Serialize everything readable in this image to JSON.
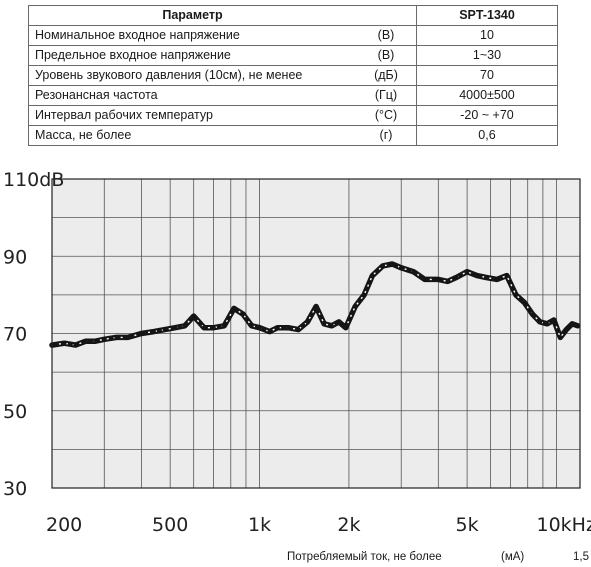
{
  "spec_table": {
    "header": {
      "param": "Параметр",
      "unit": "",
      "value": "SPT-1340"
    },
    "rows": [
      {
        "param": "Номинальное входное напряжение",
        "unit": "(В)",
        "value": "10"
      },
      {
        "param": "Предельное входное напряжение",
        "unit": "(В)",
        "value": "1~30"
      },
      {
        "param": "Уровень звукового давления (10см), не менее",
        "unit": "(дБ)",
        "value": "70"
      },
      {
        "param": "Резонансная частота",
        "unit": "(Гц)",
        "value": "4000±500"
      },
      {
        "param": "Интервал рабочих температур",
        "unit": "(°С)",
        "value": "-20 ~ +70"
      },
      {
        "param": "Масса, не более",
        "unit": "(г)",
        "value": "0,6"
      }
    ]
  },
  "footer": {
    "label": "Потребляемый ток, не более",
    "unit": "(мА)",
    "value": "1,5"
  },
  "chart_data": {
    "type": "line",
    "title": "",
    "xlabel": "",
    "ylabel": "",
    "x_scale": "log",
    "xlim": [
      200,
      12000
    ],
    "ylim": [
      30,
      110
    ],
    "grid": true,
    "y_ticks": [
      {
        "value": 110,
        "label": "110dB"
      },
      {
        "value": 90,
        "label": "90"
      },
      {
        "value": 70,
        "label": "70"
      },
      {
        "value": 50,
        "label": "50"
      },
      {
        "value": 30,
        "label": "30"
      }
    ],
    "x_ticks": [
      {
        "value": 200,
        "label": "200"
      },
      {
        "value": 500,
        "label": "500"
      },
      {
        "value": 1000,
        "label": "1k"
      },
      {
        "value": 2000,
        "label": "2k"
      },
      {
        "value": 5000,
        "label": "5k"
      },
      {
        "value": 10000,
        "label": "10kHz"
      }
    ],
    "colors": {
      "background": "#ececec",
      "grid": "#555555",
      "line": "#151515"
    },
    "series": [
      {
        "name": "",
        "x": [
          200,
          220,
          240,
          260,
          280,
          300,
          330,
          360,
          400,
          440,
          480,
          520,
          560,
          600,
          650,
          700,
          760,
          820,
          880,
          940,
          1000,
          1080,
          1150,
          1250,
          1350,
          1450,
          1550,
          1650,
          1750,
          1850,
          1950,
          2100,
          2250,
          2400,
          2600,
          2800,
          3000,
          3300,
          3600,
          4000,
          4300,
          4600,
          5000,
          5400,
          5800,
          6300,
          6800,
          7300,
          7800,
          8300,
          8800,
          9300,
          9800,
          10300,
          10800,
          11300,
          11800
        ],
        "y": [
          67,
          67.5,
          67,
          68,
          68,
          68.5,
          69,
          69,
          70,
          70.5,
          71,
          71.5,
          72,
          74.5,
          71.5,
          71.5,
          72,
          76.5,
          75,
          72,
          71.5,
          70.5,
          71.5,
          71.5,
          71,
          73,
          77,
          72.5,
          72,
          73,
          71.5,
          77,
          80,
          85,
          87.5,
          88,
          87,
          86,
          84,
          84,
          83.5,
          84.5,
          86,
          85,
          84.5,
          84,
          85,
          80,
          78,
          75,
          73,
          72.5,
          73.5,
          69,
          71,
          72.5,
          72
        ]
      }
    ]
  }
}
